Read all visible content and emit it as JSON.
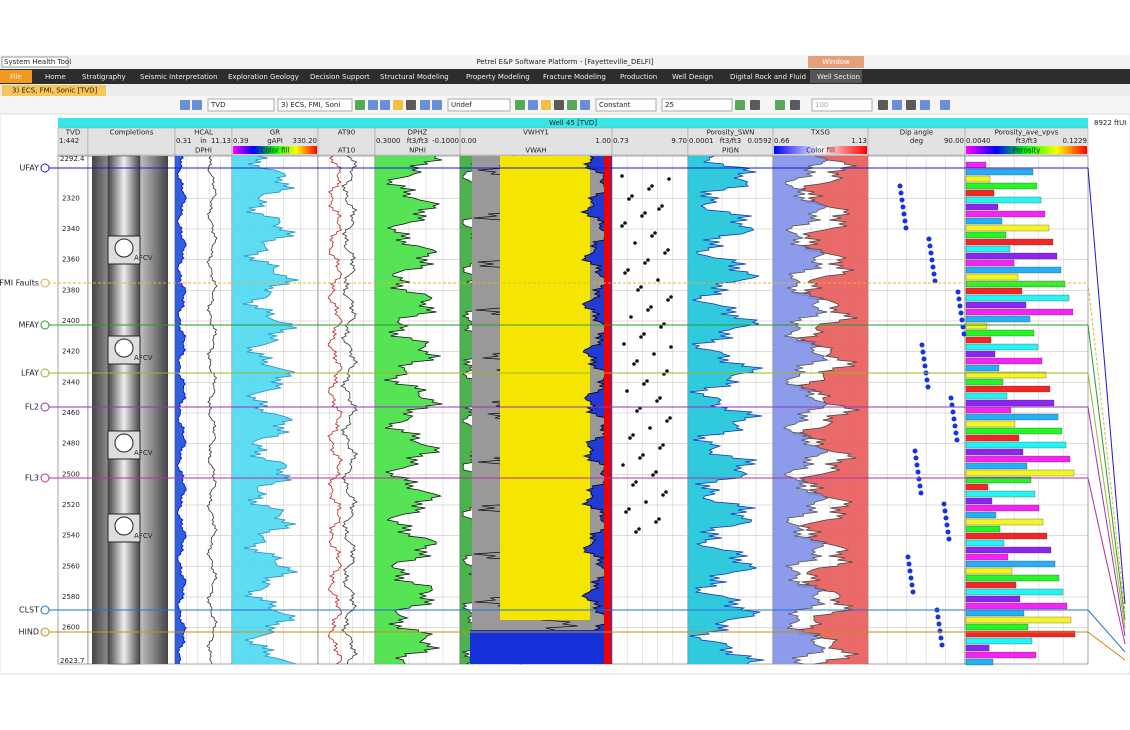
{
  "window": {
    "health_tool": "System Health Tool",
    "app_title": "Petrel E&P Software Platform - [Fayetteville_DELFI]",
    "window_tab": "Window"
  },
  "menu": [
    "File",
    "Home",
    "Stratigraphy",
    "Seismic Interpretation",
    "Exploration Geology",
    "Decision Support",
    "Structural Modeling",
    "Property Modeling",
    "Fracture Modeling",
    "Production",
    "Well Design",
    "Digital Rock and Fluid",
    "Well Section"
  ],
  "document_tab": "3) ECS, FMI, Sonic [TVD]",
  "toolbar": {
    "domain": "TVD",
    "template": "3) ECS, FMI, Soni",
    "undef": "Undef",
    "mode": "Constant",
    "size": "25",
    "zoom": "100"
  },
  "well": {
    "header": "Well 45 [TVD]",
    "depth_label": "8922 ftUI"
  },
  "tracks": [
    {
      "name": "TVD",
      "min": "1:442"
    },
    {
      "name": "Completions"
    },
    {
      "name": "HCAL",
      "min": "0.31",
      "unit": "in",
      "max": "11.13",
      "sub": "DPHI"
    },
    {
      "name": "GR",
      "min": "0.39",
      "unit": "gAPI",
      "max": "330.20",
      "sub": "Color fill"
    },
    {
      "name": "AT90",
      "sub": "AT10"
    },
    {
      "name": "DPHZ",
      "min": "0.3000",
      "unit": "ft3/ft3",
      "max": "-0.1000",
      "sub": "NPHI"
    },
    {
      "name": "VWHY1",
      "min": "0.00",
      "max": "1.00",
      "sub": "VWAH"
    },
    {
      "min": "0.73",
      "max": "9.70"
    },
    {
      "name": "Porosity_SWN",
      "min": "0.0001",
      "unit": "ft3/ft3",
      "max": "0.0592",
      "sub": "PIGN"
    },
    {
      "name": "TXSG",
      "min": "0.66",
      "max": "1.13",
      "sub": "Color fill"
    },
    {
      "name": "Dip angle",
      "unit": "deg",
      "max": "90.00"
    },
    {
      "name": "Porosity_ave_vpvs",
      "min": "0.0040",
      "unit": "ft3/ft3",
      "max": "0.1229",
      "sub": "Porosity"
    }
  ],
  "depth": {
    "top": "2292.4",
    "bottom": "2623.7",
    "ticks": [
      2320,
      2340,
      2360,
      2380,
      2400,
      2420,
      2440,
      2460,
      2480,
      2500,
      2520,
      2540,
      2560,
      2580,
      2600
    ]
  },
  "markers": [
    "UFAY",
    "FMI Faults",
    "MFAY",
    "LFAY",
    "FL2",
    "FL3",
    "CLST",
    "HIND"
  ],
  "completions": [
    "AFCV",
    "AFCV",
    "AFCV",
    "AFCV"
  ]
}
